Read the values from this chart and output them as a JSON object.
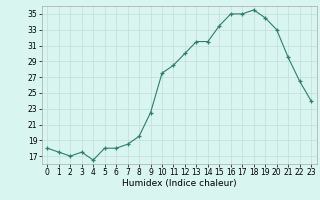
{
  "x": [
    0,
    1,
    2,
    3,
    4,
    5,
    6,
    7,
    8,
    9,
    10,
    11,
    12,
    13,
    14,
    15,
    16,
    17,
    18,
    19,
    20,
    21,
    22,
    23
  ],
  "y": [
    18,
    17.5,
    17,
    17.5,
    16.5,
    18,
    18,
    18.5,
    19.5,
    22.5,
    27.5,
    28.5,
    30,
    31.5,
    31.5,
    33.5,
    35,
    35,
    35.5,
    34.5,
    33,
    29.5,
    26.5,
    24
  ],
  "line_color": "#2e7d6e",
  "marker": "+",
  "bg_color": "#d8f5f0",
  "grid_color": "#c0ddd8",
  "xlabel": "Humidex (Indice chaleur)",
  "xlim": [
    -0.5,
    23.5
  ],
  "ylim": [
    16,
    36
  ],
  "yticks": [
    17,
    19,
    21,
    23,
    25,
    27,
    29,
    31,
    33,
    35
  ],
  "xticks": [
    0,
    1,
    2,
    3,
    4,
    5,
    6,
    7,
    8,
    9,
    10,
    11,
    12,
    13,
    14,
    15,
    16,
    17,
    18,
    19,
    20,
    21,
    22,
    23
  ],
  "tick_fontsize": 5.5,
  "label_fontsize": 6.5
}
